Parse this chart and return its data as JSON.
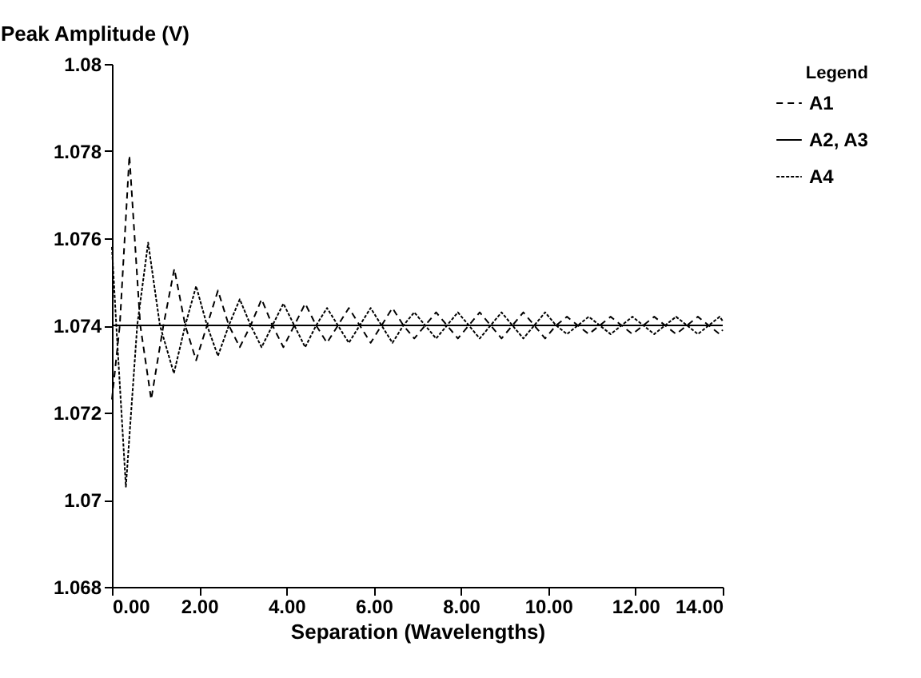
{
  "chart_data": {
    "type": "line",
    "xlabel": "Separation (Wavelengths)",
    "ylabel": "Peak Amplitude (V)",
    "legend_title": "Legend",
    "legend": "right",
    "grid": false,
    "xlim": [
      0,
      14
    ],
    "xticks": [
      {
        "value": 0,
        "label": "0.00"
      },
      {
        "value": 2,
        "label": "2.00"
      },
      {
        "value": 4,
        "label": "4.00"
      },
      {
        "value": 6,
        "label": "6.00"
      },
      {
        "value": 8,
        "label": "8.00"
      },
      {
        "value": 10,
        "label": "10.00"
      },
      {
        "value": 12,
        "label": "12.00"
      },
      {
        "value": 14,
        "label": "14.00"
      }
    ],
    "ylim": [
      1.068,
      1.08
    ],
    "yticks": [
      1.068,
      1.07,
      1.072,
      1.074,
      1.076,
      1.078,
      1.08
    ],
    "series": [
      {
        "name": "A1",
        "color": "#000000",
        "line_style": "dashed",
        "x": [
          0,
          0.18,
          0.4,
          0.65,
          0.9,
          1.18,
          1.43,
          1.68,
          1.93,
          2.18,
          2.43,
          2.68,
          2.93,
          3.18,
          3.43,
          3.68,
          3.93,
          4.18,
          4.43,
          4.68,
          4.93,
          5.18,
          5.43,
          5.68,
          5.93,
          6.18,
          6.43,
          6.68,
          6.93,
          7.18,
          7.43,
          7.68,
          7.93,
          8.18,
          8.43,
          8.68,
          8.93,
          9.18,
          9.43,
          9.68,
          9.93,
          10.18,
          10.43,
          10.68,
          10.93,
          11.18,
          11.43,
          11.68,
          11.93,
          12.18,
          12.43,
          12.68,
          12.93,
          13.18,
          13.43,
          13.68,
          13.93,
          14
        ],
        "values": [
          1.0723,
          1.074,
          1.0779,
          1.074,
          1.0723,
          1.074,
          1.0753,
          1.074,
          1.0732,
          1.074,
          1.0748,
          1.074,
          1.0735,
          1.074,
          1.0746,
          1.074,
          1.0735,
          1.074,
          1.0745,
          1.074,
          1.0736,
          1.074,
          1.0744,
          1.074,
          1.0736,
          1.074,
          1.0744,
          1.074,
          1.0737,
          1.074,
          1.0743,
          1.074,
          1.0737,
          1.074,
          1.0743,
          1.074,
          1.0737,
          1.074,
          1.0743,
          1.074,
          1.0737,
          1.074,
          1.0742,
          1.074,
          1.0738,
          1.074,
          1.0742,
          1.074,
          1.0738,
          1.074,
          1.0742,
          1.074,
          1.0738,
          1.074,
          1.0742,
          1.074,
          1.0738,
          1.0739
        ]
      },
      {
        "name": "A2, A3",
        "color": "#000000",
        "line_style": "solid",
        "x": [
          0,
          14
        ],
        "values": [
          1.074,
          1.074
        ]
      },
      {
        "name": "A4",
        "color": "#000000",
        "line_style": "dotted",
        "x": [
          0,
          0.1,
          0.32,
          0.58,
          0.83,
          1.1,
          1.42,
          1.68,
          1.93,
          2.18,
          2.43,
          2.68,
          2.93,
          3.18,
          3.43,
          3.68,
          3.93,
          4.18,
          4.43,
          4.68,
          4.93,
          5.18,
          5.43,
          5.68,
          5.93,
          6.18,
          6.43,
          6.68,
          6.93,
          7.18,
          7.43,
          7.68,
          7.93,
          8.18,
          8.43,
          8.68,
          8.93,
          9.18,
          9.43,
          9.68,
          9.93,
          10.18,
          10.43,
          10.68,
          10.93,
          11.18,
          11.43,
          11.68,
          11.93,
          12.18,
          12.43,
          12.68,
          12.93,
          13.18,
          13.43,
          13.68,
          13.93,
          14
        ],
        "values": [
          1.0758,
          1.074,
          1.0703,
          1.074,
          1.0759,
          1.074,
          1.0729,
          1.074,
          1.0749,
          1.074,
          1.0733,
          1.074,
          1.0746,
          1.074,
          1.0735,
          1.074,
          1.0745,
          1.074,
          1.0735,
          1.074,
          1.0744,
          1.074,
          1.0736,
          1.074,
          1.0744,
          1.074,
          1.0736,
          1.074,
          1.0743,
          1.074,
          1.0737,
          1.074,
          1.0743,
          1.074,
          1.0737,
          1.074,
          1.0743,
          1.074,
          1.0737,
          1.074,
          1.0743,
          1.074,
          1.0738,
          1.074,
          1.0742,
          1.074,
          1.0738,
          1.074,
          1.0742,
          1.074,
          1.0738,
          1.074,
          1.0742,
          1.074,
          1.0738,
          1.074,
          1.0742,
          1.0741
        ]
      }
    ]
  }
}
